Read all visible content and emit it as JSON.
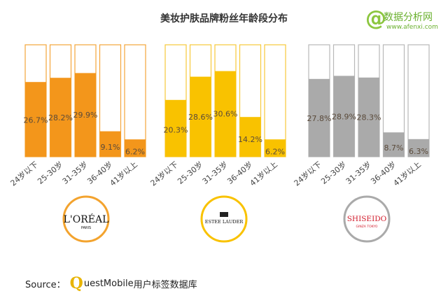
{
  "chart_data": {
    "type": "bar",
    "title": "美妆护肤品牌粉丝年龄段分布",
    "categories": [
      "24岁以下",
      "25-30岁",
      "31-35岁",
      "36-40岁",
      "41岁以上"
    ],
    "ylim": [
      0,
      40
    ],
    "series": [
      {
        "name": "L'ORÉAL",
        "values": [
          26.7,
          28.2,
          29.9,
          9.1,
          6.2
        ],
        "labels": [
          "26.7%",
          "28.2%",
          "29.9%",
          "9.1%",
          "6.2%"
        ],
        "color": "#f3961b",
        "border": "#f4a53a"
      },
      {
        "name": "ESTEE LAUDER",
        "values": [
          20.3,
          28.6,
          30.6,
          14.2,
          6.2
        ],
        "labels": [
          "20.3%",
          "28.6%",
          "30.6%",
          "14.2%",
          "6.2%"
        ],
        "color": "#f9c200",
        "border": "#f7c93a"
      },
      {
        "name": "SHISEIDO",
        "values": [
          27.8,
          28.9,
          28.3,
          8.7,
          6.3
        ],
        "labels": [
          "27.8%",
          "28.9%",
          "28.3%",
          "8.7%",
          "6.3%"
        ],
        "color": "#aaaaaa",
        "border": "#b8b8b8"
      }
    ]
  },
  "logos": [
    {
      "text": "L'ORÉAL",
      "sub": "PARIS",
      "ring_color": "#f3a32e"
    },
    {
      "text": "ESTEE LAUDER",
      "sub": "",
      "ring_color": "#f9c200"
    },
    {
      "text": "SHISEIDO",
      "sub": "GINZA TOKYO",
      "ring_color": "#aaaaaa"
    }
  ],
  "watermark": {
    "symbol": "@",
    "name": "数据分析网",
    "url": "www.afenxi.com"
  },
  "source": {
    "prefix": "Source：",
    "brand_initial": "Q",
    "brand_rest": "uestMobile",
    "suffix": " 用户标签数据库"
  }
}
